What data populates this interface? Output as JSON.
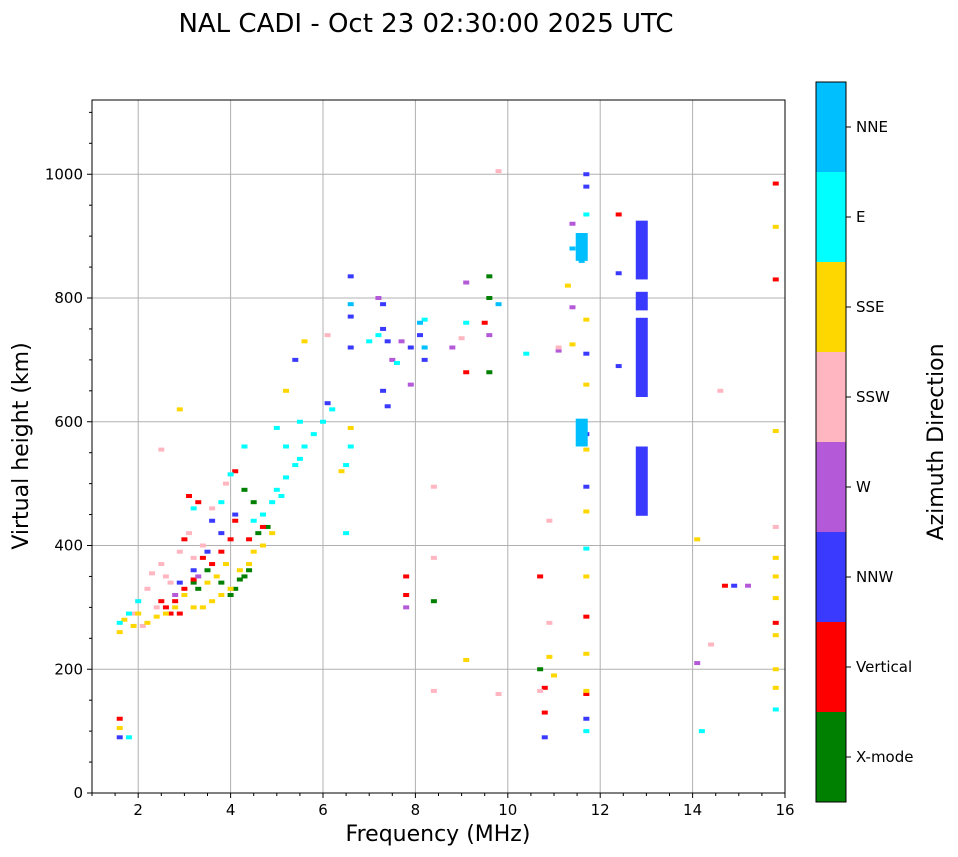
{
  "chart_data": {
    "type": "scatter",
    "title": "NAL CADI - Oct 23 02:30:00 2025 UTC",
    "xlabel": "Frequency (MHz)",
    "ylabel": "Virtual height (km)",
    "xlim": [
      1,
      16
    ],
    "ylim": [
      0,
      1120
    ],
    "xticks": [
      2,
      4,
      6,
      8,
      10,
      12,
      14,
      16
    ],
    "yticks": [
      0,
      200,
      400,
      600,
      800,
      1000
    ],
    "grid": true,
    "colorbar": {
      "label": "Azimuth Direction",
      "categories": [
        {
          "name": "X-mode",
          "color": "#008000"
        },
        {
          "name": "Vertical",
          "color": "#ff0000"
        },
        {
          "name": "NNW",
          "color": "#3a3aff"
        },
        {
          "name": "W",
          "color": "#b45ad8"
        },
        {
          "name": "SSW",
          "color": "#ffb6c1"
        },
        {
          "name": "SSE",
          "color": "#ffd700"
        },
        {
          "name": "E",
          "color": "#00ffff"
        },
        {
          "name": "NNE",
          "color": "#00bfff"
        }
      ]
    },
    "series": [
      {
        "name": "X-mode",
        "points": [
          [
            4.1,
            330
          ],
          [
            4.2,
            345
          ],
          [
            4.3,
            350
          ],
          [
            4.4,
            360
          ],
          [
            4.6,
            420
          ],
          [
            4.8,
            430
          ],
          [
            3.5,
            360
          ],
          [
            3.3,
            330
          ],
          [
            3.8,
            340
          ],
          [
            4.5,
            470
          ],
          [
            4.0,
            320
          ],
          [
            9.6,
            680
          ],
          [
            9.6,
            800
          ],
          [
            9.6,
            835
          ],
          [
            8.4,
            310
          ],
          [
            10.7,
            200
          ],
          [
            3.2,
            340
          ],
          [
            4.3,
            490
          ]
        ]
      },
      {
        "name": "Vertical",
        "points": [
          [
            1.6,
            120
          ],
          [
            2.6,
            300
          ],
          [
            2.7,
            290
          ],
          [
            2.8,
            310
          ],
          [
            3.0,
            330
          ],
          [
            3.2,
            345
          ],
          [
            3.4,
            380
          ],
          [
            3.6,
            370
          ],
          [
            3.8,
            390
          ],
          [
            4.0,
            410
          ],
          [
            4.1,
            440
          ],
          [
            4.4,
            410
          ],
          [
            4.7,
            430
          ],
          [
            3.0,
            410
          ],
          [
            3.3,
            470
          ],
          [
            2.9,
            290
          ],
          [
            7.8,
            350
          ],
          [
            7.8,
            320
          ],
          [
            9.1,
            680
          ],
          [
            9.5,
            760
          ],
          [
            10.7,
            350
          ],
          [
            10.8,
            170
          ],
          [
            10.8,
            130
          ],
          [
            11.7,
            285
          ],
          [
            11.7,
            160
          ],
          [
            12.4,
            935
          ],
          [
            14.7,
            335
          ],
          [
            15.8,
            985
          ],
          [
            15.8,
            830
          ],
          [
            15.8,
            275
          ],
          [
            3.1,
            480
          ],
          [
            4.1,
            520
          ],
          [
            2.5,
            310
          ]
        ]
      },
      {
        "name": "NNW",
        "points": [
          [
            1.6,
            90
          ],
          [
            3.2,
            360
          ],
          [
            3.5,
            390
          ],
          [
            3.8,
            420
          ],
          [
            4.1,
            450
          ],
          [
            6.6,
            835
          ],
          [
            6.6,
            770
          ],
          [
            6.6,
            720
          ],
          [
            7.3,
            790
          ],
          [
            7.3,
            750
          ],
          [
            7.4,
            730
          ],
          [
            7.3,
            650
          ],
          [
            7.4,
            625
          ],
          [
            7.9,
            720
          ],
          [
            8.1,
            740
          ],
          [
            8.2,
            700
          ],
          [
            11.7,
            1000
          ],
          [
            11.7,
            980
          ],
          [
            11.7,
            710
          ],
          [
            11.7,
            580
          ],
          [
            11.7,
            495
          ],
          [
            11.7,
            120
          ],
          [
            12.4,
            840
          ],
          [
            12.4,
            690
          ],
          [
            10.8,
            90
          ],
          [
            14.9,
            335
          ],
          [
            5.4,
            700
          ],
          [
            6.1,
            630
          ],
          [
            2.9,
            340
          ],
          [
            3.6,
            440
          ]
        ]
      },
      {
        "name": "W",
        "points": [
          [
            7.2,
            800
          ],
          [
            7.5,
            700
          ],
          [
            7.7,
            730
          ],
          [
            7.9,
            660
          ],
          [
            8.8,
            720
          ],
          [
            9.1,
            825
          ],
          [
            9.6,
            740
          ],
          [
            11.4,
            920
          ],
          [
            11.4,
            785
          ],
          [
            11.1,
            715
          ],
          [
            14.1,
            210
          ],
          [
            15.2,
            335
          ],
          [
            7.8,
            300
          ],
          [
            2.8,
            320
          ],
          [
            3.3,
            350
          ]
        ]
      },
      {
        "name": "SSW",
        "points": [
          [
            1.9,
            290
          ],
          [
            2.0,
            310
          ],
          [
            2.2,
            330
          ],
          [
            2.3,
            355
          ],
          [
            2.5,
            370
          ],
          [
            2.6,
            350
          ],
          [
            2.7,
            340
          ],
          [
            2.9,
            390
          ],
          [
            3.1,
            420
          ],
          [
            3.2,
            380
          ],
          [
            3.4,
            400
          ],
          [
            3.6,
            460
          ],
          [
            3.9,
            500
          ],
          [
            2.4,
            300
          ],
          [
            2.1,
            270
          ],
          [
            2.5,
            555
          ],
          [
            6.1,
            740
          ],
          [
            8.4,
            495
          ],
          [
            8.4,
            380
          ],
          [
            8.4,
            165
          ],
          [
            9.0,
            735
          ],
          [
            9.8,
            1005
          ],
          [
            10.9,
            440
          ],
          [
            10.9,
            275
          ],
          [
            11.1,
            720
          ],
          [
            14.6,
            650
          ],
          [
            14.4,
            240
          ],
          [
            15.8,
            430
          ],
          [
            9.8,
            160
          ],
          [
            10.7,
            165
          ]
        ]
      },
      {
        "name": "SSE",
        "points": [
          [
            1.6,
            260
          ],
          [
            1.7,
            280
          ],
          [
            1.9,
            270
          ],
          [
            2.0,
            290
          ],
          [
            2.2,
            275
          ],
          [
            2.4,
            285
          ],
          [
            2.6,
            290
          ],
          [
            2.8,
            300
          ],
          [
            3.0,
            320
          ],
          [
            3.2,
            300
          ],
          [
            3.4,
            300
          ],
          [
            3.6,
            310
          ],
          [
            3.8,
            320
          ],
          [
            4.0,
            330
          ],
          [
            4.2,
            360
          ],
          [
            4.4,
            370
          ],
          [
            4.5,
            390
          ],
          [
            4.7,
            400
          ],
          [
            4.9,
            420
          ],
          [
            3.5,
            340
          ],
          [
            3.7,
            350
          ],
          [
            3.9,
            370
          ],
          [
            2.9,
            620
          ],
          [
            5.6,
            730
          ],
          [
            6.6,
            590
          ],
          [
            6.4,
            520
          ],
          [
            11.3,
            820
          ],
          [
            11.4,
            725
          ],
          [
            11.7,
            765
          ],
          [
            11.7,
            660
          ],
          [
            11.7,
            555
          ],
          [
            11.7,
            455
          ],
          [
            11.7,
            350
          ],
          [
            11.7,
            225
          ],
          [
            11.7,
            165
          ],
          [
            9.1,
            215
          ],
          [
            10.9,
            220
          ],
          [
            11.0,
            190
          ],
          [
            14.1,
            410
          ],
          [
            15.8,
            915
          ],
          [
            15.8,
            585
          ],
          [
            15.8,
            380
          ],
          [
            15.8,
            350
          ],
          [
            15.8,
            315
          ],
          [
            15.8,
            255
          ],
          [
            15.8,
            200
          ],
          [
            15.8,
            170
          ],
          [
            1.6,
            105
          ],
          [
            5.2,
            650
          ]
        ]
      },
      {
        "name": "E",
        "points": [
          [
            1.6,
            275
          ],
          [
            1.8,
            290
          ],
          [
            2.0,
            310
          ],
          [
            4.5,
            440
          ],
          [
            4.7,
            450
          ],
          [
            4.9,
            470
          ],
          [
            5.0,
            490
          ],
          [
            5.1,
            480
          ],
          [
            5.2,
            510
          ],
          [
            5.4,
            530
          ],
          [
            5.5,
            540
          ],
          [
            5.6,
            560
          ],
          [
            5.8,
            580
          ],
          [
            6.0,
            600
          ],
          [
            5.2,
            560
          ],
          [
            5.5,
            600
          ],
          [
            5.0,
            590
          ],
          [
            6.2,
            620
          ],
          [
            4.3,
            560
          ],
          [
            6.6,
            560
          ],
          [
            6.5,
            420
          ],
          [
            6.5,
            530
          ],
          [
            7.0,
            730
          ],
          [
            7.2,
            740
          ],
          [
            7.6,
            695
          ],
          [
            8.2,
            765
          ],
          [
            9.1,
            760
          ],
          [
            10.4,
            710
          ],
          [
            11.7,
            935
          ],
          [
            11.7,
            395
          ],
          [
            11.7,
            100
          ],
          [
            14.2,
            100
          ],
          [
            15.8,
            135
          ],
          [
            3.8,
            470
          ],
          [
            3.2,
            460
          ],
          [
            4.0,
            515
          ],
          [
            1.8,
            90
          ]
        ]
      },
      {
        "name": "NNE",
        "points": [
          [
            6.6,
            790
          ],
          [
            8.1,
            760
          ],
          [
            8.2,
            720
          ],
          [
            11.6,
            880
          ],
          [
            11.6,
            860
          ],
          [
            11.6,
            600
          ],
          [
            11.6,
            570
          ],
          [
            11.4,
            880
          ],
          [
            9.8,
            790
          ]
        ]
      }
    ],
    "bars": [
      {
        "name": "NNW",
        "x": 12.9,
        "ymin": 830,
        "ymax": 925
      },
      {
        "name": "NNW",
        "x": 12.9,
        "ymin": 780,
        "ymax": 810
      },
      {
        "name": "NNW",
        "x": 12.9,
        "ymin": 640,
        "ymax": 768
      },
      {
        "name": "NNW",
        "x": 12.9,
        "ymin": 448,
        "ymax": 560
      },
      {
        "name": "NNE",
        "x": 11.6,
        "ymin": 860,
        "ymax": 905
      },
      {
        "name": "NNE",
        "x": 11.6,
        "ymin": 560,
        "ymax": 605
      }
    ]
  }
}
